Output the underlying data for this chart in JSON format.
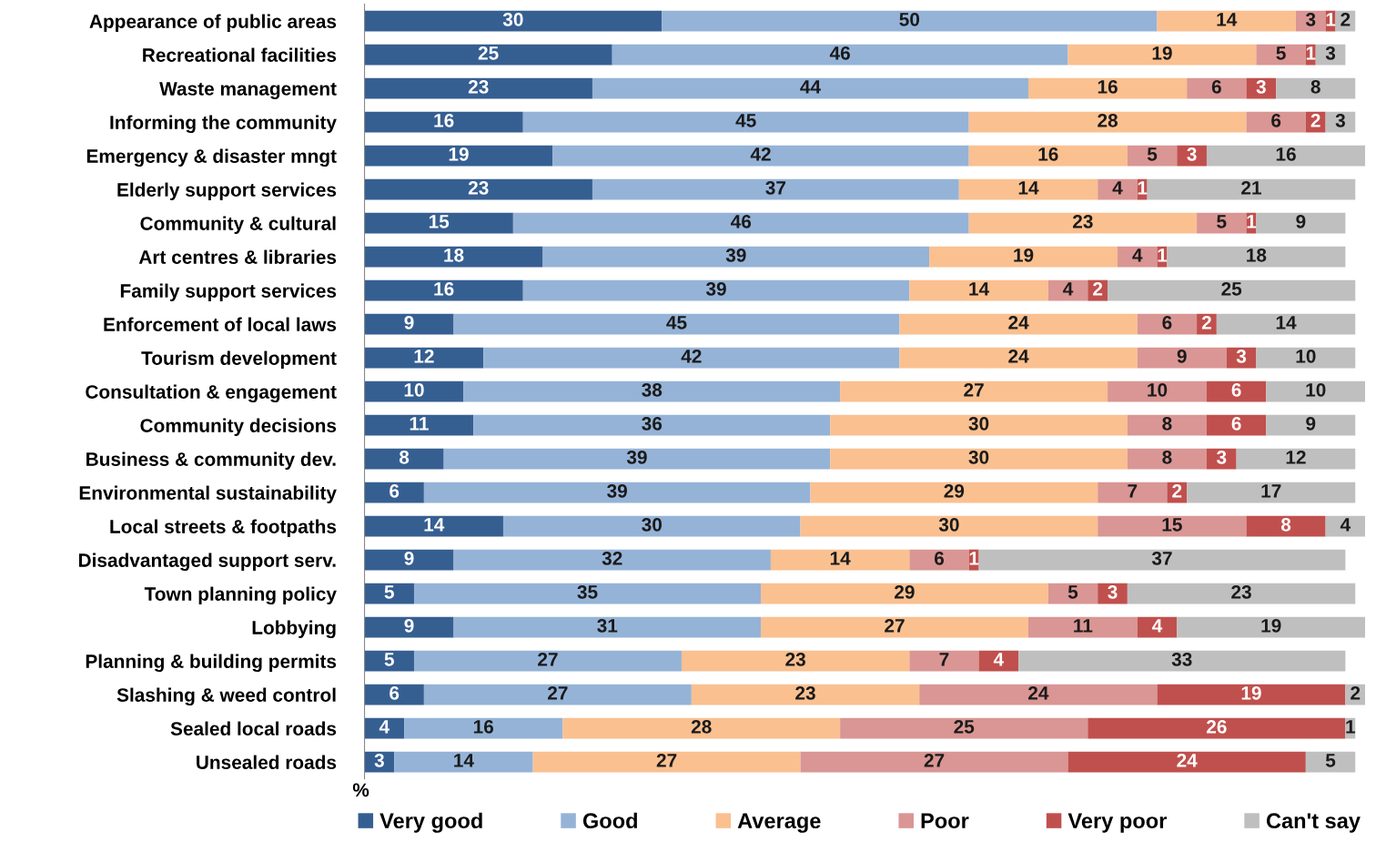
{
  "chart_data": {
    "type": "bar",
    "orientation": "horizontal",
    "stacked": true,
    "data_labels": true,
    "grid": false,
    "legend": "bottom",
    "tick_labels": "y",
    "xlabel": "%",
    "xlim": [
      0,
      101
    ],
    "categories": [
      "Appearance of public areas",
      "Recreational facilities",
      "Waste management",
      "Informing the community",
      "Emergency & disaster mngt",
      "Elderly support services",
      "Community & cultural",
      "Art centres & libraries",
      "Family support services",
      "Enforcement of local laws",
      "Tourism development",
      "Consultation & engagement",
      "Community decisions",
      "Business & community dev.",
      "Environmental sustainability",
      "Local streets & footpaths",
      "Disadvantaged support serv.",
      "Town planning policy",
      "Lobbying",
      "Planning & building permits",
      "Slashing & weed control",
      "Sealed local roads",
      "Unsealed roads"
    ],
    "series": [
      {
        "name": "Very good",
        "color": "#365f91",
        "values": [
          30,
          25,
          23,
          16,
          19,
          23,
          15,
          18,
          16,
          9,
          12,
          10,
          11,
          8,
          6,
          14,
          9,
          5,
          9,
          5,
          6,
          4,
          3
        ]
      },
      {
        "name": "Good",
        "color": "#95b3d7",
        "values": [
          50,
          46,
          44,
          45,
          42,
          37,
          46,
          39,
          39,
          45,
          42,
          38,
          36,
          39,
          39,
          30,
          32,
          35,
          31,
          27,
          27,
          16,
          14
        ]
      },
      {
        "name": "Average",
        "color": "#fac090",
        "values": [
          14,
          19,
          16,
          28,
          16,
          14,
          23,
          19,
          14,
          24,
          24,
          27,
          30,
          30,
          29,
          30,
          14,
          29,
          27,
          23,
          23,
          28,
          27
        ]
      },
      {
        "name": "Poor",
        "color": "#d99694",
        "values": [
          3,
          5,
          6,
          6,
          5,
          4,
          5,
          4,
          4,
          6,
          9,
          10,
          8,
          8,
          7,
          15,
          6,
          5,
          11,
          7,
          24,
          25,
          27
        ]
      },
      {
        "name": "Very poor",
        "color": "#c0504d",
        "values": [
          1,
          1,
          3,
          2,
          3,
          1,
          1,
          1,
          2,
          2,
          3,
          6,
          6,
          3,
          2,
          8,
          1,
          3,
          4,
          4,
          19,
          26,
          24
        ]
      },
      {
        "name": "Can't say",
        "color": "#bfbfbf",
        "values": [
          2,
          3,
          8,
          3,
          16,
          21,
          9,
          18,
          25,
          14,
          10,
          10,
          9,
          12,
          17,
          4,
          37,
          23,
          19,
          33,
          2,
          1,
          5
        ]
      }
    ]
  }
}
